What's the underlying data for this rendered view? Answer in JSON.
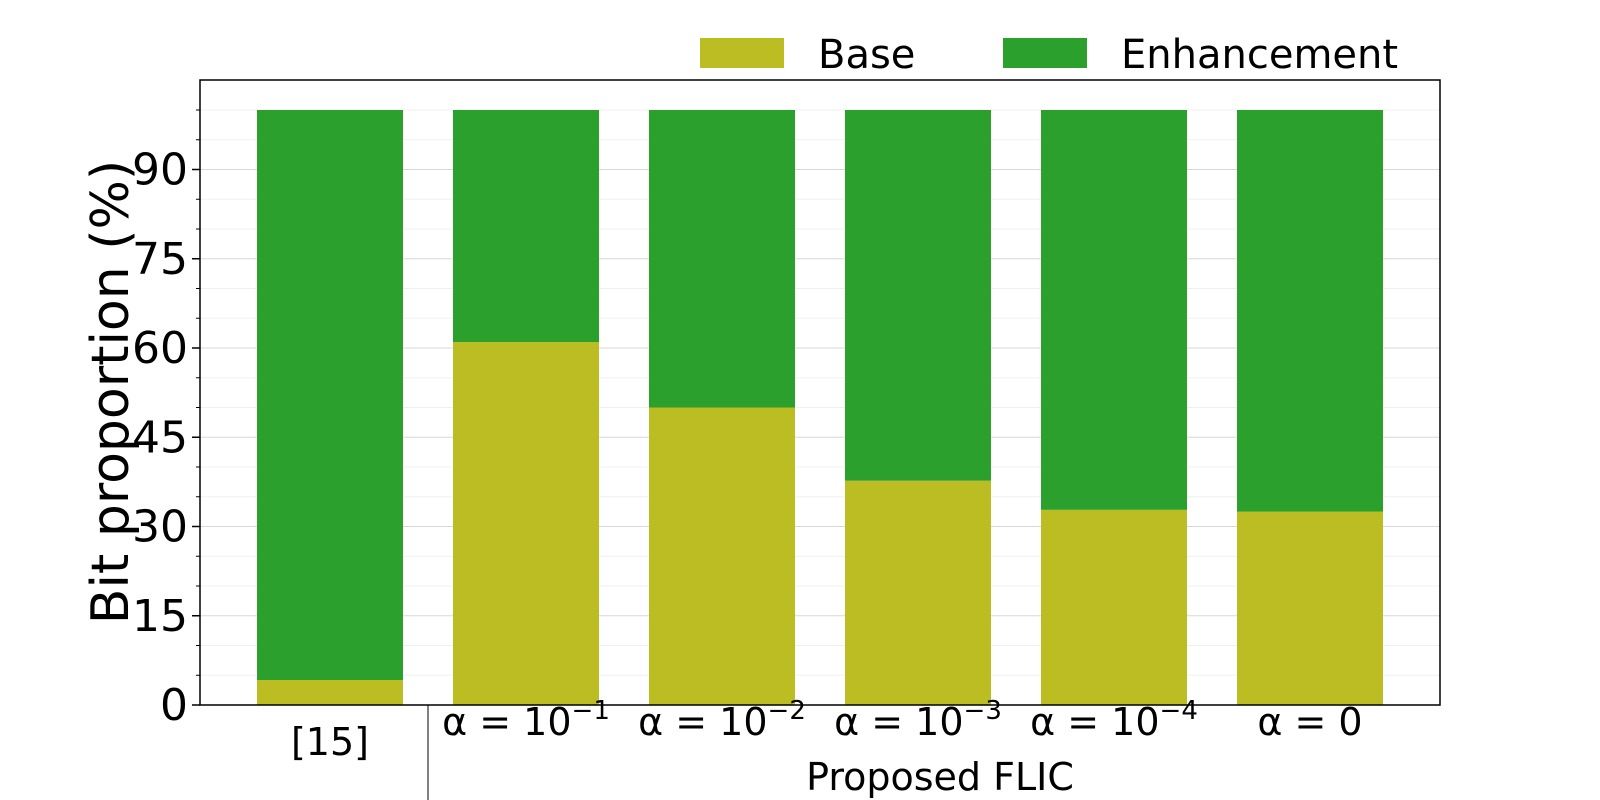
{
  "chart_data": {
    "type": "bar",
    "stacked": true,
    "ylabel": "Bit proportion (%)",
    "ylim": [
      0,
      100
    ],
    "yticks": [
      0,
      15,
      30,
      45,
      60,
      75,
      90
    ],
    "grid": true,
    "legend_position": "top-right",
    "categories": [
      {
        "base": "[15]",
        "sup": ""
      },
      {
        "base": "α = 10",
        "sup": "−1"
      },
      {
        "base": "α = 10",
        "sup": "−2"
      },
      {
        "base": "α = 10",
        "sup": "−3"
      },
      {
        "base": "α = 10",
        "sup": "−4"
      },
      {
        "base": "α = 0",
        "sup": ""
      }
    ],
    "group_label": "Proposed FLIC",
    "series": [
      {
        "name": "Base",
        "color": "#bcbd22",
        "values": [
          4.2,
          61,
          50,
          37.7,
          32.8,
          32.5
        ]
      },
      {
        "name": "Enhancement",
        "color": "#2ca02c",
        "values": [
          95.8,
          39,
          50,
          62.3,
          67.2,
          67.5
        ]
      }
    ]
  }
}
